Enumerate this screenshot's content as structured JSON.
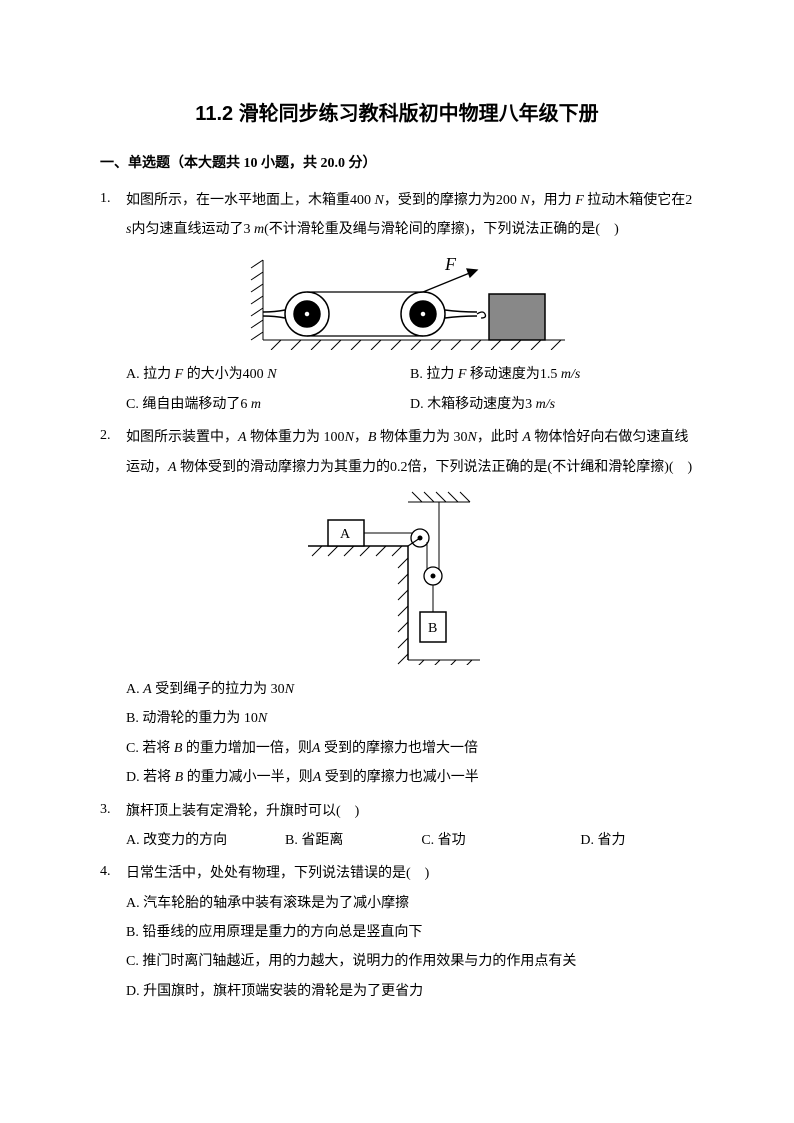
{
  "title": "11.2 滑轮同步练习教科版初中物理八年级下册",
  "section": "一、单选题（本大题共 10 小题，共 20.0 分）",
  "questions": [
    {
      "num": "1.",
      "text": "如图所示，在一水平地面上，木箱重400 <i>N</i>，受到的摩擦力为200 <i>N</i>，用力 <i>F</i> 拉动木箱使它在2 <i>s</i>内匀速直线运动了3 <i>m</i>(不计滑轮重及绳与滑轮间的摩擦)，下列说法正确的是(　)",
      "options": [
        "A. 拉力 <i>F</i> 的大小为400 <i>N</i>",
        "B. 拉力 <i>F</i> 移动速度为1.5 <i>m/s</i>",
        "C. 绳自由端移动了6 <i>m</i>",
        "D. 木箱移动速度为3 <i>m/s</i>"
      ]
    },
    {
      "num": "2.",
      "text": "如图所示装置中，<i>A</i> 物体重力为 100<i>N</i>，<i>B</i> 物体重力为 30<i>N</i>，此时 <i>A</i> 物体恰好向右做匀速直线运动，<i>A</i> 物体受到的滑动摩擦力为其重力的0.2倍，下列说法正确的是(不计绳和滑轮摩擦)(　)",
      "options": [
        "A. <i>A</i> 受到绳子的拉力为 30<i>N</i>",
        "B. 动滑轮的重力为 10<i>N</i>",
        "C. 若将 <i>B</i> 的重力增加一倍，则<i>A</i> 受到的摩擦力也增大一倍",
        "D. 若将 <i>B</i> 的重力减小一半，则<i>A</i> 受到的摩擦力也减小一半"
      ]
    },
    {
      "num": "3.",
      "text": "旗杆顶上装有定滑轮，升旗时可以(　)",
      "options": [
        "A. 改变力的方向",
        "B. 省距离",
        "C. 省功",
        "D. 省力"
      ]
    },
    {
      "num": "4.",
      "text": "日常生活中，处处有物理，下列说法错误的是(　)",
      "options": [
        "A. 汽车轮胎的轴承中装有滚珠是为了减小摩擦",
        "B. 铅垂线的应用原理是重力的方向总是竖直向下",
        "C. 推门时离门轴越近，用的力越大，说明力的作用效果与力的作用点有关",
        "D. 升国旗时，旗杆顶端安装的滑轮是为了更省力"
      ]
    }
  ],
  "figure1": {
    "stroke": "#000000",
    "fill_box": "#888888",
    "hatch": "#000000",
    "label_F": "F"
  },
  "figure2": {
    "stroke": "#000000",
    "hatch": "#000000",
    "label_A": "A",
    "label_B": "B"
  }
}
